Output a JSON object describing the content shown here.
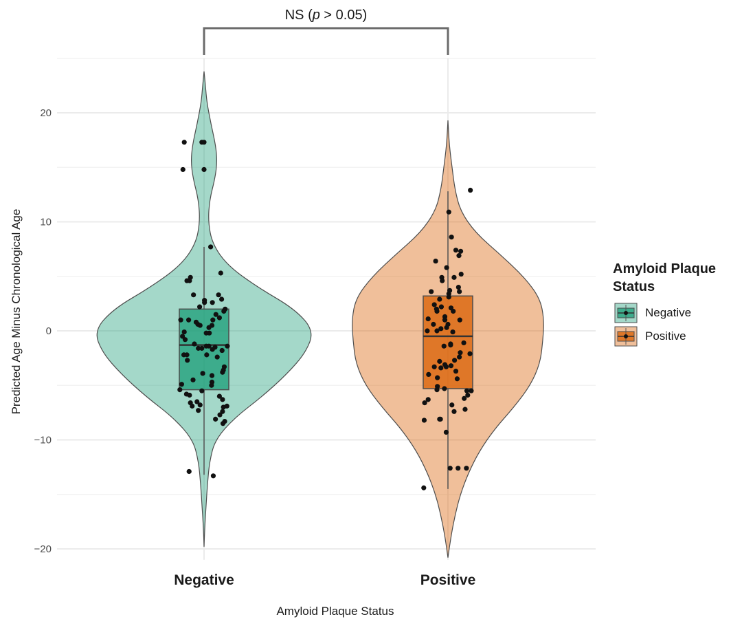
{
  "chart_data": {
    "type": "violin",
    "title": "",
    "xlabel": "Amyloid Plaque Status",
    "ylabel": "Predicted Age Minus Chronological Age",
    "ylim": [
      -21,
      25
    ],
    "y_ticks": [
      -20,
      -10,
      0,
      10,
      20
    ],
    "grid": true,
    "legend": {
      "title_lines": [
        "Amyloid Plaque",
        "Status"
      ],
      "placement": "right",
      "entries": [
        "Negative",
        "Positive"
      ]
    },
    "annotation": {
      "prefix": "NS (",
      "p_symbol": "p",
      "suffix": " > 0.05)"
    },
    "categories": [
      "Negative",
      "Positive"
    ],
    "colors": {
      "Negative": "#1b9e77",
      "Positive": "#d95f02"
    },
    "groups": [
      {
        "name": "Negative",
        "color": "#1b9e77",
        "violin_range": [
          -19.8,
          23.8
        ],
        "violin_profile": [
          [
            -19.8,
            0
          ],
          [
            -18,
            1
          ],
          [
            -16,
            3
          ],
          [
            -14,
            5
          ],
          [
            -12,
            8
          ],
          [
            -10,
            16
          ],
          [
            -8,
            44
          ],
          [
            -6,
            85
          ],
          [
            -4,
            120
          ],
          [
            -2,
            148
          ],
          [
            0,
            160
          ],
          [
            2,
            132
          ],
          [
            4,
            78
          ],
          [
            6,
            34
          ],
          [
            8,
            12
          ],
          [
            10,
            6
          ],
          [
            12,
            8
          ],
          [
            14,
            16
          ],
          [
            15.5,
            19
          ],
          [
            17,
            17
          ],
          [
            19,
            10
          ],
          [
            21,
            4
          ],
          [
            22.5,
            2
          ],
          [
            23.8,
            0
          ]
        ],
        "box": {
          "q1": -5.4,
          "median": -1.3,
          "q3": 2.0,
          "whisker_low": -13.2,
          "whisker_high": 7.7
        },
        "points": [
          [
            -0.45,
            17.3
          ],
          [
            -0.05,
            17.3
          ],
          [
            0,
            17.3
          ],
          [
            0,
            14.8
          ],
          [
            -0.48,
            14.8
          ],
          [
            0.15,
            7.7
          ],
          [
            0.38,
            5.3
          ],
          [
            -0.39,
            4.6
          ],
          [
            -0.31,
            4.9
          ],
          [
            -0.33,
            4.6
          ],
          [
            -0.24,
            3.3
          ],
          [
            0.33,
            3.3
          ],
          [
            0.4,
            2.9
          ],
          [
            0.01,
            2.8
          ],
          [
            0.01,
            2.6
          ],
          [
            0.19,
            2.6
          ],
          [
            -0.1,
            2.2
          ],
          [
            0.48,
            2.0
          ],
          [
            0.45,
            1.8
          ],
          [
            0.27,
            1.5
          ],
          [
            0.35,
            1.2
          ],
          [
            0.2,
            1.0
          ],
          [
            -0.53,
            1.0
          ],
          [
            -0.35,
            1.0
          ],
          [
            -0.18,
            0.8
          ],
          [
            -0.14,
            0.6
          ],
          [
            -0.09,
            0.5
          ],
          [
            0.18,
            0.5
          ],
          [
            0.11,
            0.3
          ],
          [
            0.12,
            -0.2
          ],
          [
            0.05,
            -0.2
          ],
          [
            -0.45,
            -0.1
          ],
          [
            -0.49,
            -0.5
          ],
          [
            -0.43,
            -0.8
          ],
          [
            -0.22,
            -1.2
          ],
          [
            0.05,
            -1.4
          ],
          [
            0.11,
            -1.4
          ],
          [
            0.25,
            -1.5
          ],
          [
            -0.13,
            -1.6
          ],
          [
            -0.05,
            -1.6
          ],
          [
            0.19,
            -1.7
          ],
          [
            0.53,
            -1.4
          ],
          [
            0.41,
            -1.8
          ],
          [
            -0.46,
            -2.2
          ],
          [
            -0.39,
            -2.2
          ],
          [
            0.06,
            -2.2
          ],
          [
            0.3,
            -2.4
          ],
          [
            -0.38,
            -2.7
          ],
          [
            0.46,
            -3.3
          ],
          [
            0.44,
            -3.6
          ],
          [
            0.42,
            -3.8
          ],
          [
            -0.03,
            -3.9
          ],
          [
            0.18,
            -4.1
          ],
          [
            -0.25,
            -4.5
          ],
          [
            0.18,
            -4.7
          ],
          [
            -0.51,
            -4.9
          ],
          [
            0.17,
            -5.0
          ],
          [
            -0.55,
            -5.4
          ],
          [
            -0.05,
            -5.5
          ],
          [
            -0.4,
            -5.8
          ],
          [
            -0.33,
            -5.9
          ],
          [
            0.35,
            -6.0
          ],
          [
            0.42,
            -6.3
          ],
          [
            -0.31,
            -6.6
          ],
          [
            -0.16,
            -6.5
          ],
          [
            -0.27,
            -6.9
          ],
          [
            -0.09,
            -6.8
          ],
          [
            0.52,
            -6.9
          ],
          [
            0.44,
            -7.0
          ],
          [
            -0.13,
            -7.3
          ],
          [
            0.42,
            -7.4
          ],
          [
            0.36,
            -7.7
          ],
          [
            0.26,
            -8.1
          ],
          [
            0.47,
            -8.3
          ],
          [
            0.43,
            -8.5
          ],
          [
            -0.34,
            -12.9
          ],
          [
            0.21,
            -13.3
          ]
        ]
      },
      {
        "name": "Positive",
        "color": "#d95f02",
        "violin_range": [
          -20.8,
          19.3
        ],
        "violin_profile": [
          [
            -20.8,
            0
          ],
          [
            -19,
            4
          ],
          [
            -17,
            10
          ],
          [
            -15,
            18
          ],
          [
            -13,
            30
          ],
          [
            -11,
            46
          ],
          [
            -9,
            68
          ],
          [
            -7,
            96
          ],
          [
            -5,
            120
          ],
          [
            -3,
            134
          ],
          [
            -1,
            138
          ],
          [
            1,
            140
          ],
          [
            3,
            134
          ],
          [
            5,
            110
          ],
          [
            7,
            76
          ],
          [
            9,
            40
          ],
          [
            11,
            18
          ],
          [
            13,
            10
          ],
          [
            15,
            6
          ],
          [
            17,
            2
          ],
          [
            19.3,
            0
          ]
        ],
        "box": {
          "q1": -5.3,
          "median": -0.5,
          "q3": 3.2,
          "whisker_low": -14.5,
          "whisker_high": 12.8
        },
        "points": [
          [
            0.51,
            12.9
          ],
          [
            0.02,
            10.9
          ],
          [
            0.08,
            8.6
          ],
          [
            0.18,
            7.4
          ],
          [
            0.29,
            7.3
          ],
          [
            0.25,
            6.9
          ],
          [
            -0.28,
            6.4
          ],
          [
            -0.03,
            5.8
          ],
          [
            0.3,
            5.2
          ],
          [
            0.14,
            4.9
          ],
          [
            -0.14,
            4.9
          ],
          [
            -0.13,
            4.6
          ],
          [
            0.24,
            4.0
          ],
          [
            -0.38,
            3.6
          ],
          [
            0.04,
            3.7
          ],
          [
            0.26,
            3.6
          ],
          [
            0.02,
            3.4
          ],
          [
            0.02,
            3.1
          ],
          [
            -0.19,
            2.9
          ],
          [
            -0.31,
            2.4
          ],
          [
            -0.15,
            2.2
          ],
          [
            0.07,
            2.1
          ],
          [
            -0.26,
            2.0
          ],
          [
            -0.25,
            1.8
          ],
          [
            0.12,
            1.8
          ],
          [
            -0.07,
            1.3
          ],
          [
            -0.45,
            1.1
          ],
          [
            -0.07,
            1.0
          ],
          [
            0.27,
            1.0
          ],
          [
            -0.33,
            0.6
          ],
          [
            0.0,
            0.6
          ],
          [
            -0.03,
            0.3
          ],
          [
            -0.16,
            0.2
          ],
          [
            -0.25,
            0.0
          ],
          [
            -0.47,
            0.0
          ],
          [
            0.11,
            -0.1
          ],
          [
            0.36,
            -1.1
          ],
          [
            0.06,
            -1.2
          ],
          [
            0.06,
            -1.3
          ],
          [
            -0.09,
            -1.4
          ],
          [
            0.28,
            -2.0
          ],
          [
            0.26,
            -2.4
          ],
          [
            0.5,
            -2.1
          ],
          [
            0.15,
            -2.7
          ],
          [
            -0.19,
            -2.8
          ],
          [
            -0.07,
            -3.1
          ],
          [
            0.07,
            -3.2
          ],
          [
            -0.04,
            -3.3
          ],
          [
            -0.16,
            -3.4
          ],
          [
            -0.31,
            -3.3
          ],
          [
            0.18,
            -3.7
          ],
          [
            -0.44,
            -4.0
          ],
          [
            -0.24,
            -4.3
          ],
          [
            0.21,
            -4.4
          ],
          [
            -0.24,
            -5.1
          ],
          [
            -0.08,
            -5.3
          ],
          [
            -0.25,
            -5.4
          ],
          [
            0.53,
            -5.5
          ],
          [
            0.43,
            -5.5
          ],
          [
            0.45,
            -5.9
          ],
          [
            0.37,
            -6.2
          ],
          [
            -0.45,
            -6.3
          ],
          [
            -0.53,
            -6.6
          ],
          [
            0.09,
            -6.8
          ],
          [
            0.39,
            -7.2
          ],
          [
            0.14,
            -7.4
          ],
          [
            -0.54,
            -8.2
          ],
          [
            -0.19,
            -8.1
          ],
          [
            -0.17,
            -8.1
          ],
          [
            -0.04,
            -9.3
          ],
          [
            0.05,
            -12.6
          ],
          [
            0.23,
            -12.6
          ],
          [
            0.42,
            -12.6
          ],
          [
            -0.55,
            -14.4
          ]
        ]
      }
    ]
  }
}
